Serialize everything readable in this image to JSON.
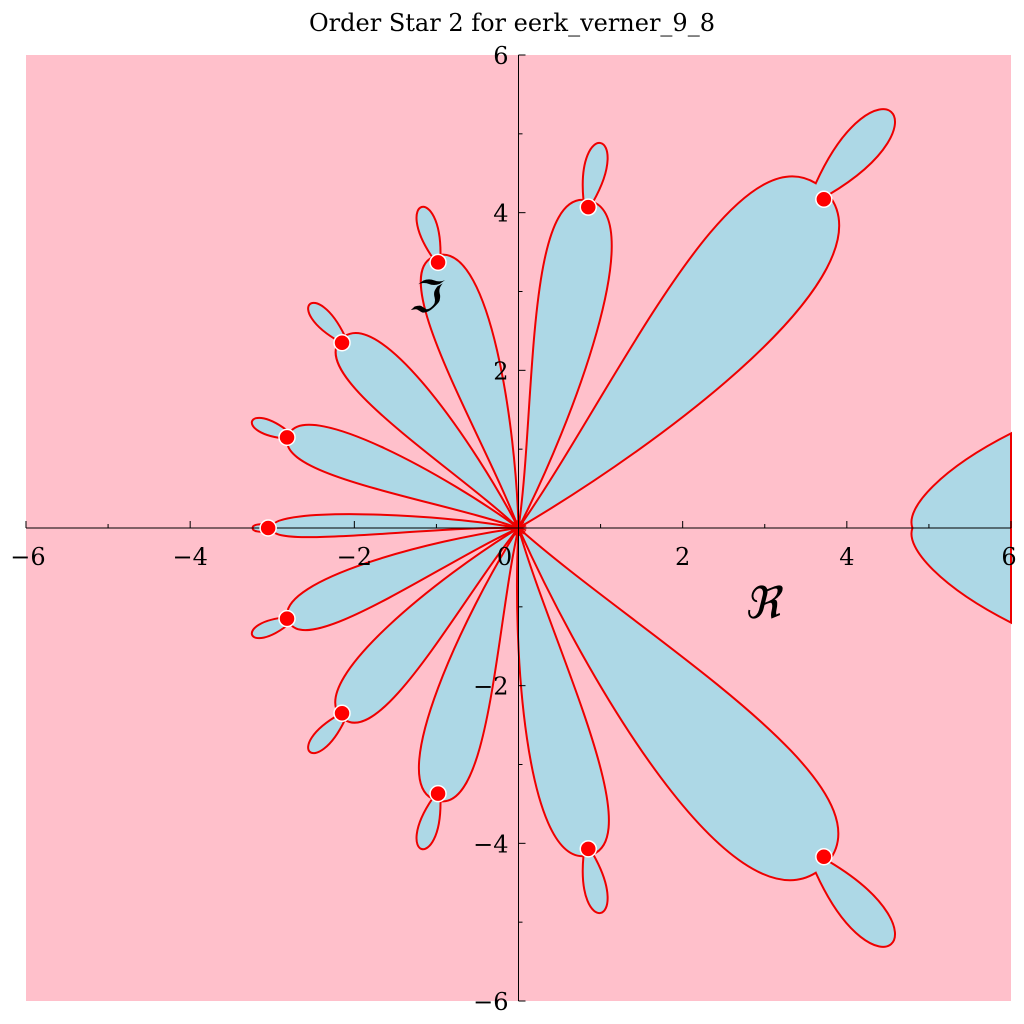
{
  "chart_data": {
    "type": "scatter",
    "title": "Order Star 2 for eerk_verner_9_8",
    "xlabel": "ℜ",
    "ylabel": "ℑ",
    "xlim": [
      -6,
      6
    ],
    "ylim": [
      -6,
      6
    ],
    "x_ticks": [
      -6,
      -4,
      -2,
      0,
      2,
      4,
      6
    ],
    "y_ticks": [
      -6,
      -4,
      -2,
      2,
      4,
      6
    ],
    "x_tick_labels": [
      "−6",
      "−4",
      "−2",
      "0",
      "2",
      "4",
      "6"
    ],
    "y_tick_labels": [
      "−6",
      "−4",
      "−2",
      "2",
      "4",
      "6"
    ],
    "grid": false,
    "colors": {
      "background_region": "#ffc0cb",
      "star_region": "#add8e6",
      "boundary": "#ee0000",
      "pole_marker": "#ff0000",
      "pole_edge": "#ffffff"
    },
    "poles": [
      {
        "x": -3.05,
        "y": 0.0
      },
      {
        "x": -2.82,
        "y": 1.15
      },
      {
        "x": -2.82,
        "y": -1.15
      },
      {
        "x": -2.15,
        "y": 2.35
      },
      {
        "x": -2.15,
        "y": -2.35
      },
      {
        "x": -0.98,
        "y": 3.37
      },
      {
        "x": -0.98,
        "y": -3.37
      },
      {
        "x": 0.85,
        "y": 4.07
      },
      {
        "x": 0.85,
        "y": -4.07
      },
      {
        "x": 3.72,
        "y": 4.17
      },
      {
        "x": 3.72,
        "y": -4.17
      }
    ],
    "petals": [
      {
        "tip": [
          -3.0,
          0.0
        ],
        "width": 0.2
      },
      {
        "tip": [
          -2.8,
          1.17
        ],
        "width": 0.4
      },
      {
        "tip": [
          -2.8,
          -1.17
        ],
        "width": 0.4
      },
      {
        "tip": [
          -2.15,
          2.4
        ],
        "width": 0.48
      },
      {
        "tip": [
          -2.15,
          -2.4
        ],
        "width": 0.48
      },
      {
        "tip": [
          -1.0,
          3.45
        ],
        "width": 0.52
      },
      {
        "tip": [
          -1.0,
          -3.45
        ],
        "width": 0.52
      },
      {
        "tip": [
          0.85,
          4.15
        ],
        "width": 0.6
      },
      {
        "tip": [
          0.85,
          -4.15
        ],
        "width": 0.6
      },
      {
        "tip": [
          3.7,
          4.3
        ],
        "width": 1.05
      },
      {
        "tip": [
          3.7,
          -4.3
        ],
        "width": 1.05
      }
    ],
    "right_region_vertex_x": 4.8
  }
}
